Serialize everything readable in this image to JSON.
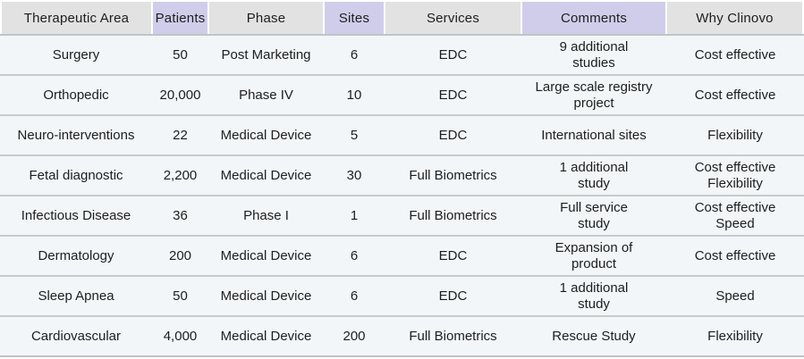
{
  "chart_data": {
    "type": "table",
    "columns": [
      "Therapeutic Area",
      "Patients",
      "Phase",
      "Sites",
      "Services",
      "Comments",
      "Why Clinovo"
    ],
    "accent_column_indices": [
      1,
      3,
      5
    ],
    "rows": [
      [
        "Surgery",
        "50",
        "Post Marketing",
        "6",
        "EDC",
        "9 additional\nstudies",
        "Cost effective"
      ],
      [
        "Orthopedic",
        "20,000",
        "Phase IV",
        "10",
        "EDC",
        "Large scale registry\nproject",
        "Cost effective"
      ],
      [
        "Neuro-interventions",
        "22",
        "Medical Device",
        "5",
        "EDC",
        "International sites",
        "Flexibility"
      ],
      [
        "Fetal diagnostic",
        "2,200",
        "Medical Device",
        "30",
        "Full Biometrics",
        "1 additional\nstudy",
        "Cost effective\nFlexibility"
      ],
      [
        "Infectious Disease",
        "36",
        "Phase I",
        "1",
        "Full Biometrics",
        "Full service\nstudy",
        "Cost effective\nSpeed"
      ],
      [
        "Dermatology",
        "200",
        "Medical Device",
        "6",
        "EDC",
        "Expansion of\nproduct",
        "Cost effective"
      ],
      [
        "Sleep Apnea",
        "50",
        "Medical Device",
        "6",
        "EDC",
        "1 additional\nstudy",
        "Speed"
      ],
      [
        "Cardiovascular",
        "4,000",
        "Medical Device",
        "200",
        "Full Biometrics",
        "Rescue Study",
        "Flexibility"
      ]
    ]
  },
  "colors": {
    "header_gray": "#e2e2e2",
    "header_accent": "#d0cdeb",
    "row_bg": "#f2f6f9",
    "divider": "#c7cbcb",
    "text": "#1d1d1d"
  }
}
